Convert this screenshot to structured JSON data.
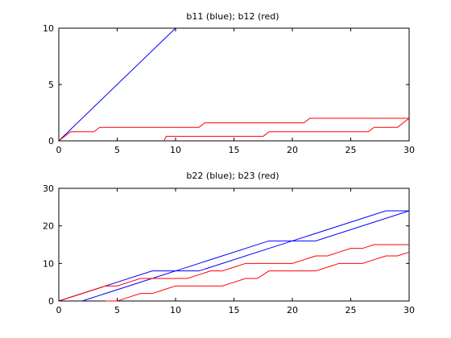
{
  "chart_data": [
    {
      "type": "line",
      "title": "b11 (blue); b12 (red)",
      "xlabel": "",
      "ylabel": "",
      "xlim": [
        0,
        30
      ],
      "ylim": [
        0,
        10
      ],
      "xticks": [
        0,
        5,
        10,
        15,
        20,
        25,
        30
      ],
      "yticks": [
        0,
        5,
        10
      ],
      "grid": false,
      "series": [
        {
          "color": "#0000ff",
          "x": [
            0,
            10
          ],
          "y": [
            0,
            10
          ]
        },
        {
          "color": "#ff0000",
          "x": [
            0,
            1,
            3,
            3.5,
            12,
            12.5,
            21,
            21.5,
            30
          ],
          "y": [
            0,
            0.8,
            0.8,
            1.2,
            1.2,
            1.6,
            1.6,
            2,
            2
          ]
        },
        {
          "color": "#ff0000",
          "x": [
            9,
            9.2,
            17.5,
            18,
            26.5,
            27,
            29,
            30
          ],
          "y": [
            0,
            0.4,
            0.4,
            0.8,
            0.8,
            1.2,
            1.2,
            2
          ]
        }
      ]
    },
    {
      "type": "line",
      "title": "b22 (blue); b23 (red)",
      "xlabel": "",
      "ylabel": "",
      "xlim": [
        0,
        30
      ],
      "ylim": [
        0,
        30
      ],
      "xticks": [
        0,
        5,
        10,
        15,
        20,
        25,
        30
      ],
      "yticks": [
        0,
        10,
        20,
        30
      ],
      "grid": false,
      "series": [
        {
          "color": "#0000ff",
          "x": [
            0,
            8,
            10,
            18,
            20,
            28,
            30
          ],
          "y": [
            0,
            8,
            8,
            16,
            16,
            24,
            24
          ]
        },
        {
          "color": "#0000ff",
          "x": [
            2,
            10,
            12,
            20,
            22,
            30
          ],
          "y": [
            0,
            8,
            8,
            16,
            16,
            24
          ]
        },
        {
          "color": "#ff0000",
          "x": [
            0,
            4,
            5,
            6,
            7,
            8,
            10,
            11,
            12,
            13,
            14,
            15,
            16,
            17,
            18,
            19,
            20,
            21,
            22,
            23,
            24,
            25,
            26,
            27,
            28,
            29,
            30
          ],
          "y": [
            0,
            4,
            4,
            5,
            6,
            6,
            6,
            6,
            7,
            8,
            8,
            9,
            10,
            10,
            10,
            10,
            10,
            11,
            12,
            12,
            13,
            14,
            14,
            15,
            15,
            15,
            15
          ]
        },
        {
          "color": "#ff0000",
          "x": [
            4,
            5,
            5.5,
            6,
            7,
            8,
            9,
            10,
            14,
            15,
            16,
            17,
            18,
            22,
            23,
            24,
            25,
            26,
            27,
            28,
            29,
            30
          ],
          "y": [
            0,
            0,
            0.5,
            1,
            2,
            2,
            3,
            4,
            4,
            5,
            6,
            6,
            8,
            8,
            9,
            10,
            10,
            10,
            11,
            12,
            12,
            13
          ]
        }
      ]
    }
  ]
}
